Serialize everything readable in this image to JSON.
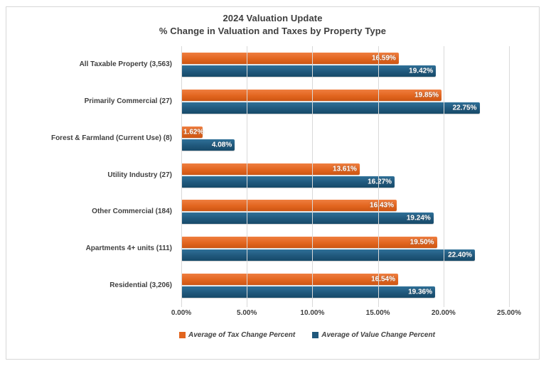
{
  "chart_data": {
    "type": "bar",
    "orientation": "horizontal",
    "title": "2024 Valuation Update",
    "subtitle": "% Change in Valuation and Taxes by Property Type",
    "categories": [
      "All Taxable Property (3,563)",
      "Primarily Commercial (27)",
      "Forest & Farmland (Current Use) (8)",
      "Utility Industry (27)",
      "Other Commercial (184)",
      "Apartments 4+ units (111)",
      "Residential (3,206)"
    ],
    "series": [
      {
        "name": "Average of Tax Change Percent",
        "color": "#e2651f",
        "values": [
          16.59,
          19.85,
          1.62,
          13.61,
          16.43,
          19.5,
          16.54
        ],
        "labels": [
          "16.59%",
          "19.85%",
          "1.62%",
          "13.61%",
          "16.43%",
          "19.50%",
          "16.54%"
        ]
      },
      {
        "name": "Average of Value Change Percent",
        "color": "#20587c",
        "values": [
          19.42,
          22.75,
          4.08,
          16.27,
          19.24,
          22.4,
          19.36
        ],
        "labels": [
          "19.42%",
          "22.75%",
          "4.08%",
          "16.27%",
          "19.24%",
          "22.40%",
          "19.36%"
        ]
      }
    ],
    "xlim": [
      0,
      25
    ],
    "x_ticks": [
      "0.00%",
      "5.00%",
      "10.00%",
      "15.00%",
      "20.00%",
      "25.00%"
    ],
    "x_tick_values": [
      0,
      5,
      10,
      15,
      20,
      25
    ],
    "grid": "vertical",
    "legend_position": "bottom",
    "value_suffix": "%",
    "colors": {
      "grid": "#d9d9d9",
      "text": "#3f3f3f",
      "frame_border": "#d7d7d7",
      "background": "#ffffff"
    }
  }
}
